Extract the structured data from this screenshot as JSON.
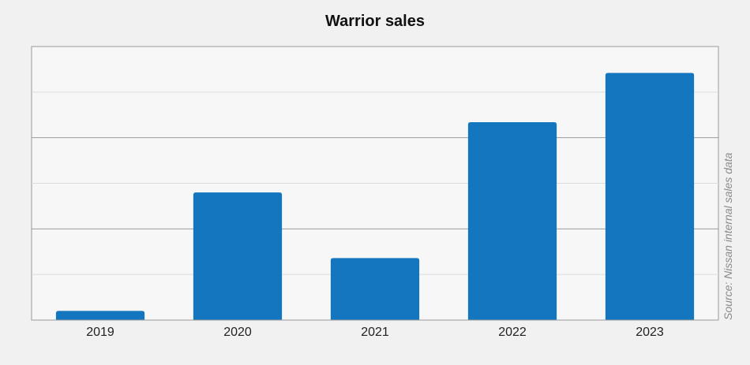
{
  "chart_data": {
    "type": "bar",
    "title": "Warrior sales",
    "categories": [
      "2019",
      "2020",
      "2021",
      "2022",
      "2023"
    ],
    "values": [
      1,
      14,
      6.8,
      21.7,
      27.1
    ],
    "ylim": [
      0,
      30
    ],
    "xlabel": "",
    "ylabel": "",
    "grid": true,
    "bar_color": "#1476be",
    "source": "Source: Nissan internal sales data"
  }
}
